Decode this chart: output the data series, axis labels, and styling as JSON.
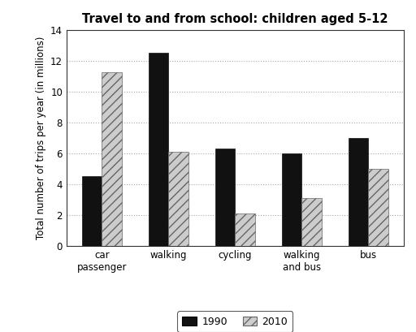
{
  "title": "Travel to and from school: children aged 5-12",
  "ylabel": "Total number of trips per year (in millions)",
  "categories": [
    "car\npassenger",
    "walking",
    "cycling",
    "walking\nand bus",
    "bus"
  ],
  "values_1990": [
    4.5,
    12.5,
    6.3,
    6.0,
    7.0
  ],
  "values_2010": [
    11.25,
    6.1,
    2.1,
    3.1,
    5.0
  ],
  "color_1990": "#111111",
  "color_2010": "#cccccc",
  "hatch_2010": "///",
  "ylim": [
    0,
    14
  ],
  "yticks": [
    0,
    2,
    4,
    6,
    8,
    10,
    12,
    14
  ],
  "bar_width": 0.3,
  "legend_labels": [
    "1990",
    "2010"
  ],
  "grid_color": "#aaaaaa",
  "background_color": "#ffffff",
  "title_fontsize": 10.5,
  "axis_fontsize": 8.5,
  "tick_fontsize": 8.5,
  "legend_fontsize": 9
}
